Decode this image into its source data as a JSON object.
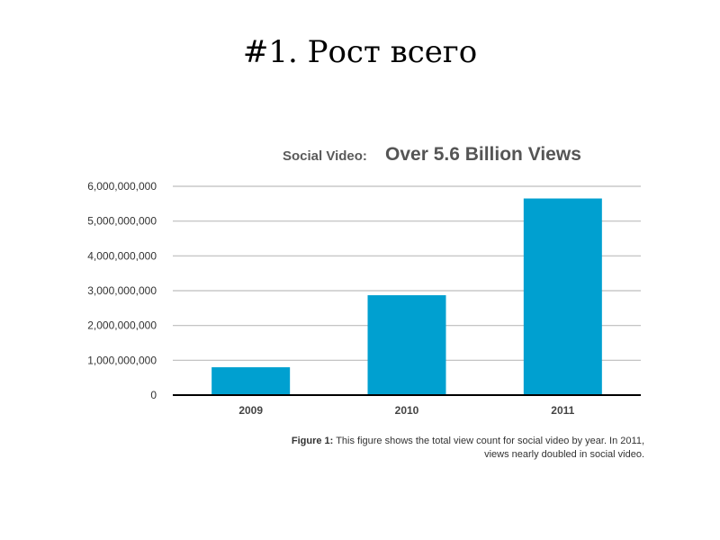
{
  "slide": {
    "title": "#1. Рост всего"
  },
  "chart_data": {
    "type": "bar",
    "title_prefix": "Social Video:",
    "title": "Over 5.6 Billion Views",
    "categories": [
      "2009",
      "2010",
      "2011"
    ],
    "values": [
      800000000,
      2870000000,
      5650000000
    ],
    "ylim": [
      0,
      6000000000
    ],
    "yticks": [
      0,
      1000000000,
      2000000000,
      3000000000,
      4000000000,
      5000000000,
      6000000000
    ],
    "ytick_labels": [
      "0",
      "1,000,000,000",
      "2,000,000,000",
      "3,000,000,000",
      "4,000,000,000",
      "5,000,000,000",
      "6,000,000,000"
    ],
    "xlabel": "",
    "ylabel": "",
    "grid": true,
    "bar_color": "#00a0d0",
    "caption_label": "Figure 1:",
    "caption_text": "This figure shows the total view count for social video by year. In 2011, views nearly doubled in social video."
  }
}
